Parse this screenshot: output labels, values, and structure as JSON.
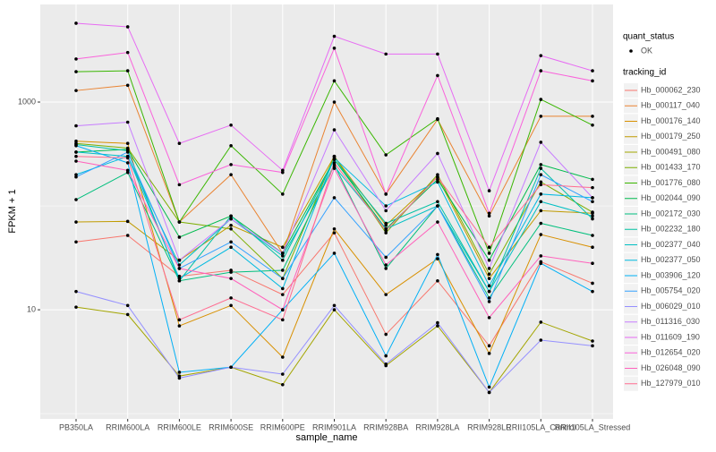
{
  "chart_data": {
    "type": "line",
    "x_label": "sample_name",
    "y_label": "FPKM + 1",
    "log_y": true,
    "ylim": [
      0.89,
      8700
    ],
    "yticks": [
      10,
      1000
    ],
    "minor_grid": [
      1,
      100
    ],
    "grid": true,
    "point_legend_title": "quant_status",
    "point_legend": [
      "OK"
    ],
    "point_color": "#000000",
    "legend_title": "tracking_id",
    "categories": [
      "PB350LA",
      "RRIM600LA",
      "RRIM600LE",
      "RRIM600SE",
      "RRIM600PE",
      "RRIM901LA",
      "RRIM928BA",
      "RRIM928LA",
      "RRIM928LE",
      "RRII105LA_Control",
      "RRII105LA_Stressed"
    ],
    "series": [
      {
        "name": "Hb_000062_230",
        "color": "#F8766D",
        "values": [
          45,
          52,
          21,
          24,
          14,
          55,
          5.8,
          19,
          4.5,
          29,
          18
        ]
      },
      {
        "name": "Hb_000117_040",
        "color": "#EA8331",
        "values": [
          1290,
          1450,
          70,
          200,
          35,
          1000,
          130,
          680,
          80,
          730,
          730
        ]
      },
      {
        "name": "Hb_000176_140",
        "color": "#D89000",
        "values": [
          420,
          400,
          7,
          11,
          3.5,
          60,
          14,
          31,
          3.8,
          53,
          40
        ]
      },
      {
        "name": "Hb_000179_250",
        "color": "#C09B00",
        "values": [
          70,
          71,
          30,
          65,
          40,
          300,
          65,
          190,
          20,
          90,
          85
        ]
      },
      {
        "name": "Hb_000491_080",
        "color": "#A3A500",
        "values": [
          10.6,
          9,
          2.3,
          2.8,
          1.9,
          10,
          2.9,
          7,
          1.6,
          7.6,
          5
        ]
      },
      {
        "name": "Hb_001433_170",
        "color": "#7CAE00",
        "values": [
          400,
          360,
          70,
          60,
          20,
          300,
          55,
          200,
          22,
          170,
          87
        ]
      },
      {
        "name": "Hb_001776_080",
        "color": "#39B600",
        "values": [
          1960,
          2000,
          70,
          380,
          130,
          1600,
          310,
          690,
          35,
          1060,
          600
        ]
      },
      {
        "name": "Hb_002044_090",
        "color": "#00BB4E",
        "values": [
          330,
          350,
          50,
          80,
          35,
          280,
          60,
          180,
          30,
          250,
          180
        ]
      },
      {
        "name": "Hb_002172_030",
        "color": "#00BF7D",
        "values": [
          115,
          210,
          19,
          23,
          24,
          250,
          25,
          100,
          13,
          68,
          52
        ]
      },
      {
        "name": "Hb_002232_180",
        "color": "#00C1A3",
        "values": [
          390,
          340,
          19,
          80,
          30,
          280,
          68,
          110,
          15,
          230,
          75
        ]
      },
      {
        "name": "Hb_002377_040",
        "color": "#00BFC4",
        "values": [
          330,
          300,
          27,
          75,
          33,
          240,
          60,
          100,
          15,
          110,
          80
        ]
      },
      {
        "name": "Hb_002377_050",
        "color": "#00BAE0",
        "values": [
          200,
          300,
          20,
          40,
          16,
          290,
          100,
          170,
          17,
          130,
          120
        ]
      },
      {
        "name": "Hb_003906_120",
        "color": "#00B0F6",
        "values": [
          380,
          260,
          2.5,
          2.8,
          10,
          35,
          3.6,
          34,
          1.8,
          28,
          15
        ]
      },
      {
        "name": "Hb_005754_020",
        "color": "#35A2FF",
        "values": [
          190,
          330,
          25,
          45,
          20,
          120,
          32,
          100,
          12,
          200,
          110
        ]
      },
      {
        "name": "Hb_006029_010",
        "color": "#9590FF",
        "values": [
          15,
          11,
          2.2,
          2.8,
          2.4,
          11,
          3,
          7.5,
          1.6,
          5.1,
          4.5
        ]
      },
      {
        "name": "Hb_011316_030",
        "color": "#C77CFF",
        "values": [
          590,
          640,
          30,
          75,
          35,
          540,
          90,
          320,
          25,
          410,
          120
        ]
      },
      {
        "name": "Hb_011609_190",
        "color": "#E76BF3",
        "values": [
          5740,
          5300,
          400,
          600,
          220,
          4300,
          2900,
          2900,
          140,
          2800,
          2000
        ]
      },
      {
        "name": "Hb_012654_020",
        "color": "#FA62DB",
        "values": [
          2600,
          3000,
          160,
          250,
          210,
          3300,
          130,
          1800,
          85,
          2000,
          1600
        ]
      },
      {
        "name": "Hb_026048_090",
        "color": "#FF62BC",
        "values": [
          270,
          220,
          25,
          20,
          10,
          230,
          27,
          70,
          8.4,
          33,
          28
        ]
      },
      {
        "name": "Hb_127979_010",
        "color": "#FF6C91",
        "values": [
          300,
          290,
          8,
          13,
          8,
          260,
          58,
          190,
          40,
          160,
          150
        ]
      }
    ]
  }
}
